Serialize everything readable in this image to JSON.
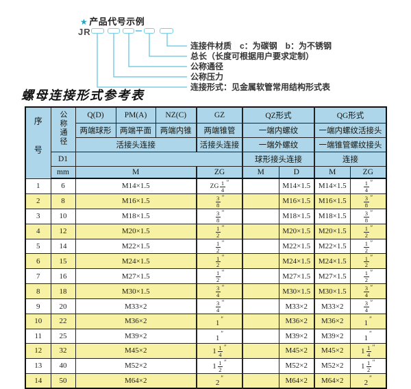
{
  "diagram": {
    "star_icon": "★",
    "heading": "产品代号示例",
    "code_prefix": "JR",
    "labels": [
      "连接件材质　c：为碳钢　b：为不锈钢",
      "总长（长度可根据用户要求定制）",
      "公称通径",
      "公称压力",
      "连接形式：见金属软管常用结构形式表"
    ]
  },
  "table": {
    "title": "螺母连接形式参考表",
    "header": {
      "seq": "序号",
      "dn": "公称通径",
      "d1": "D1",
      "mm": "mm",
      "q": "Q(D)",
      "pm": "PM(A)",
      "nz": "NZ(C)",
      "gz": "GZ",
      "qz": "QZ形式",
      "qg": "QG形式",
      "q_desc": "两端球形",
      "pm_desc": "两端平面",
      "nz_desc": "两端内锥",
      "gz_desc": "两端锥管",
      "qz_desc1": "一端内螺纹",
      "qg_desc1": "一端内螺纹活接头",
      "union_conn": "活接头连接",
      "gz_conn": "活接头连接",
      "qz_desc2": "一端外螺纹",
      "qg_desc2": "一端锥管螺纹接头",
      "qz_conn": "球形接头连接",
      "qg_conn": "连接",
      "m_unit": "M",
      "zg_unit": "ZG",
      "qz_m": "M",
      "qz_d": "D",
      "qg_m": "M",
      "qg_zg": "ZG"
    },
    "rows": [
      {
        "no": "1",
        "dn": "6",
        "m": "M14×1.5",
        "gz": "ZG 1/4",
        "qz_m": "",
        "qz_d": "M14×1.5",
        "qg_m": "M14×1.5",
        "qg_zg": "1/4"
      },
      {
        "no": "2",
        "dn": "8",
        "m": "M16×1.5",
        "gz": "3/8",
        "qz_m": "",
        "qz_d": "M16×1.5",
        "qg_m": "M16×1.5",
        "qg_zg": "3/8"
      },
      {
        "no": "3",
        "dn": "10",
        "m": "M18×1.5",
        "gz": "3/8",
        "qz_m": "",
        "qz_d": "M18×1.5",
        "qg_m": "M18×1.5",
        "qg_zg": "3/8"
      },
      {
        "no": "4",
        "dn": "12",
        "m": "M20×1.5",
        "gz": "1/2",
        "qz_m": "",
        "qz_d": "M20×1.5",
        "qg_m": "M20×1.5",
        "qg_zg": "1/2"
      },
      {
        "no": "5",
        "dn": "14",
        "m": "M22×1.5",
        "gz": "1/2",
        "qz_m": "",
        "qz_d": "M22×1.5",
        "qg_m": "M22×1.5",
        "qg_zg": "1/2"
      },
      {
        "no": "6",
        "dn": "15",
        "m": "M24×1.5",
        "gz": "1/2",
        "qz_m": "",
        "qz_d": "M24×1.5",
        "qg_m": "M24×1.5",
        "qg_zg": "1/2"
      },
      {
        "no": "7",
        "dn": "16",
        "m": "M27×1.5",
        "gz": "1/2",
        "qz_m": "",
        "qz_d": "M27×1.5",
        "qg_m": "M27×1.5",
        "qg_zg": "1/2"
      },
      {
        "no": "8",
        "dn": "18",
        "m": "M30×1.5",
        "gz": "3/4",
        "qz_m": "",
        "qz_d": "M30×1.5",
        "qg_m": "M30×1.5",
        "qg_zg": "3/4"
      },
      {
        "no": "9",
        "dn": "20",
        "m": "M33×2",
        "gz": "3/4",
        "qz_m": "",
        "qz_d": "M33×2",
        "qg_m": "M33×2",
        "qg_zg": "3/4"
      },
      {
        "no": "10",
        "dn": "22",
        "m": "M36×2",
        "gz": "1",
        "qz_m": "",
        "qz_d": "M36×2",
        "qg_m": "M36×2",
        "qg_zg": "1"
      },
      {
        "no": "11",
        "dn": "25",
        "m": "M39×2",
        "gz": "1",
        "qz_m": "",
        "qz_d": "M39×2",
        "qg_m": "M39×2",
        "qg_zg": "1"
      },
      {
        "no": "12",
        "dn": "32",
        "m": "M45×2",
        "gz": "1 1/4",
        "qz_m": "",
        "qz_d": "M45×2",
        "qg_m": "M45×2",
        "qg_zg": "1 1/4"
      },
      {
        "no": "13",
        "dn": "40",
        "m": "M52×2",
        "gz": "1 1/2",
        "qz_m": "",
        "qz_d": "M52×2",
        "qg_m": "M52×2",
        "qg_zg": "1 1/2"
      },
      {
        "no": "14",
        "dn": "50",
        "m": "M64×2",
        "gz": "2",
        "qz_m": "",
        "qz_d": "M64×2",
        "qg_m": "M64×2",
        "qg_zg": "2"
      }
    ]
  },
  "colors": {
    "header_blue": "#aed6ea",
    "stripe_yellow": "#f7f2a3",
    "line_cyan": "#7ccde4",
    "star_teal": "#18a7c7"
  }
}
